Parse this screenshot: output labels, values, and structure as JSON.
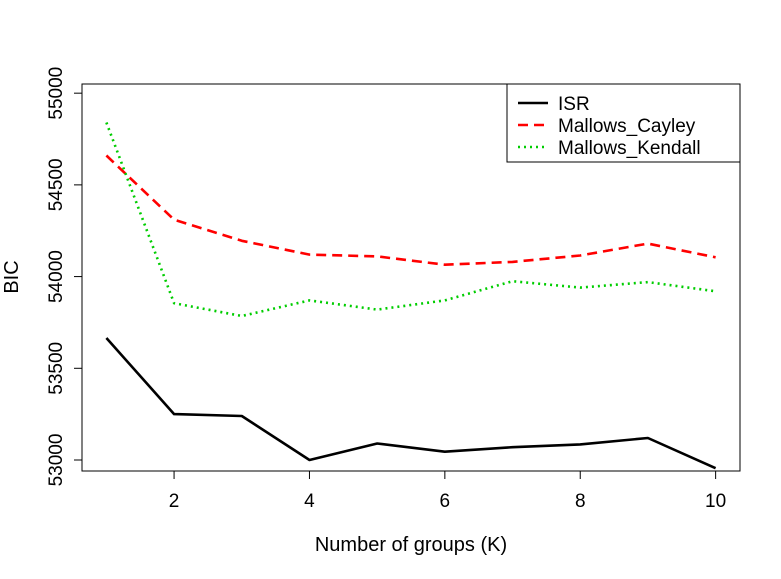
{
  "chart_data": {
    "type": "line",
    "title": "",
    "xlabel": "Number of groups (K)",
    "ylabel": "BIC",
    "x": [
      1,
      2,
      3,
      4,
      5,
      6,
      7,
      8,
      9,
      10
    ],
    "xlim": [
      0.64,
      10.36
    ],
    "ylim": [
      52940,
      55050
    ],
    "xticks": [
      2,
      4,
      6,
      8,
      10
    ],
    "yticks": [
      53000,
      53500,
      54000,
      54500,
      55000
    ],
    "grid": false,
    "legend_position": "top-right",
    "series": [
      {
        "name": "ISR",
        "color": "#000000",
        "dash": "solid",
        "values": [
          53665,
          53250,
          53240,
          53000,
          53090,
          53045,
          53070,
          53085,
          53120,
          52955
        ]
      },
      {
        "name": "Mallows_Cayley",
        "color": "#ff0000",
        "dash": "dashed",
        "values": [
          54660,
          54310,
          54195,
          54120,
          54110,
          54065,
          54080,
          54115,
          54180,
          54105
        ]
      },
      {
        "name": "Mallows_Kendall",
        "color": "#00cd00",
        "dash": "dotted",
        "values": [
          54840,
          53855,
          53785,
          53870,
          53820,
          53870,
          53975,
          53940,
          53970,
          53920
        ]
      }
    ]
  }
}
